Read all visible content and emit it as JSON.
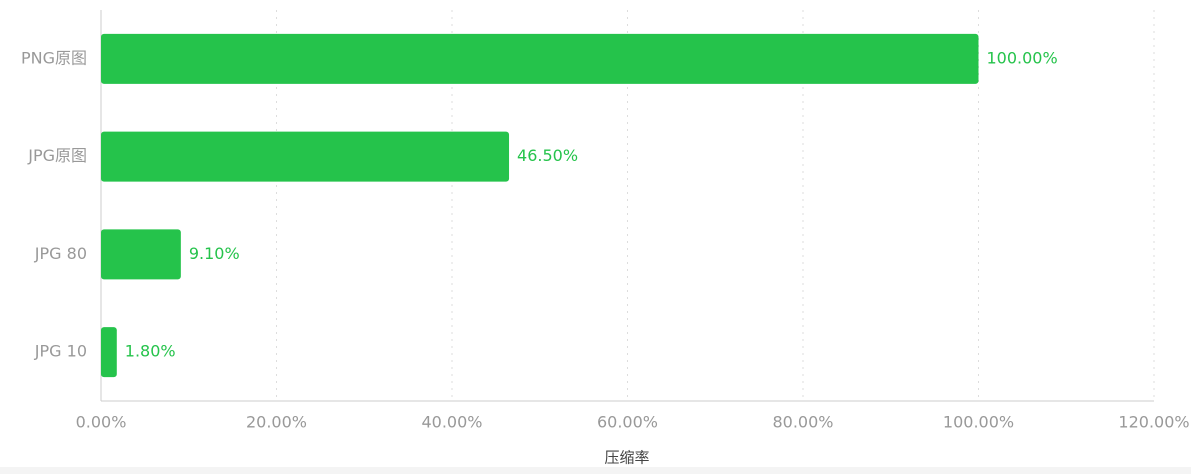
{
  "chart_data": {
    "type": "bar",
    "orientation": "horizontal",
    "x_label": "压缩率",
    "categories": [
      "PNG原图",
      "JPG原图",
      "JPG 80",
      "JPG 10"
    ],
    "values": [
      100,
      46.5,
      9.1,
      1.8
    ],
    "value_labels": [
      "100.00%",
      "46.50%",
      "9.10%",
      "1.80%"
    ],
    "color": "#25c34b",
    "xlim": [
      0,
      120
    ],
    "xticks": [
      {
        "value": 0,
        "label": "0.00%"
      },
      {
        "value": 20,
        "label": "20.00%"
      },
      {
        "value": 40,
        "label": "40.00%"
      },
      {
        "value": 60,
        "label": "60.00%"
      },
      {
        "value": 80,
        "label": "80.00%"
      },
      {
        "value": 100,
        "label": "100.00%"
      },
      {
        "value": 120,
        "label": "120.00%"
      }
    ],
    "grid": true
  }
}
